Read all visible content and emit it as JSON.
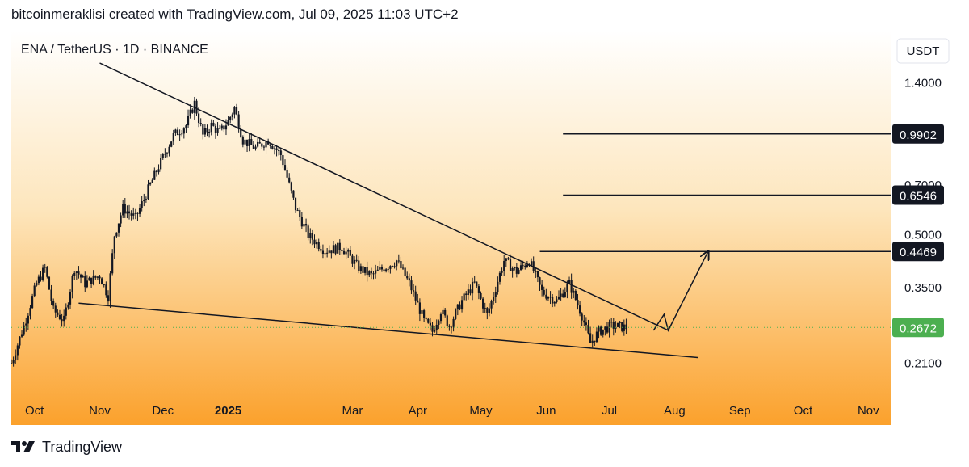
{
  "header": {
    "attribution": "bitcoinmeraklisi created with TradingView.com, Jul 09, 2025 11:03 UTC+2"
  },
  "footer": {
    "brand": "TradingView",
    "logo_icon": "tradingview-logo-icon"
  },
  "colors": {
    "bg_top": "#ffffff",
    "bg_mid": "#fde6bd",
    "bg_bottom": "#fba12c",
    "candle": "#131722",
    "trendline": "#131722",
    "last_price_badge": "#4caf50",
    "level_badge": "#131722"
  },
  "chart_data": {
    "type": "candlestick",
    "symbol_label": "ENA / TetherUS · 1D · BINANCE",
    "currency_label": "USDT",
    "y_scale": "log",
    "ylim": [
      0.17,
      1.6
    ],
    "y_ticks": [
      {
        "value": 1.4,
        "label": "1.4000"
      },
      {
        "value": 0.7,
        "label": "0.7000"
      },
      {
        "value": 0.5,
        "label": "0.5000"
      },
      {
        "value": 0.35,
        "label": "0.3500"
      },
      {
        "value": 0.21,
        "label": "0.2100"
      }
    ],
    "x_ticks": [
      {
        "date": "2024-10-01",
        "label": "Oct",
        "bold": false
      },
      {
        "date": "2024-11-01",
        "label": "Nov",
        "bold": false
      },
      {
        "date": "2024-12-01",
        "label": "Dec",
        "bold": false
      },
      {
        "date": "2025-01-01",
        "label": "2025",
        "bold": true
      },
      {
        "date": "2025-03-01",
        "label": "Mar",
        "bold": false
      },
      {
        "date": "2025-04-01",
        "label": "Apr",
        "bold": false
      },
      {
        "date": "2025-05-01",
        "label": "May",
        "bold": false
      },
      {
        "date": "2025-06-01",
        "label": "Jun",
        "bold": false
      },
      {
        "date": "2025-07-01",
        "label": "Jul",
        "bold": false
      },
      {
        "date": "2025-08-01",
        "label": "Aug",
        "bold": false
      },
      {
        "date": "2025-09-01",
        "label": "Sep",
        "bold": false
      },
      {
        "date": "2025-10-01",
        "label": "Oct",
        "bold": false
      },
      {
        "date": "2025-11-01",
        "label": "Nov",
        "bold": false
      }
    ],
    "xlim": [
      "2024-09-20",
      "2025-11-12"
    ],
    "price_path": [
      [
        "2024-09-20",
        0.21
      ],
      [
        "2024-09-26",
        0.27
      ],
      [
        "2024-10-02",
        0.36
      ],
      [
        "2024-10-06",
        0.4
      ],
      [
        "2024-10-10",
        0.3
      ],
      [
        "2024-10-15",
        0.28
      ],
      [
        "2024-10-20",
        0.4
      ],
      [
        "2024-10-25",
        0.36
      ],
      [
        "2024-11-01",
        0.38
      ],
      [
        "2024-11-05",
        0.33
      ],
      [
        "2024-11-08",
        0.5
      ],
      [
        "2024-11-12",
        0.6
      ],
      [
        "2024-11-18",
        0.56
      ],
      [
        "2024-11-24",
        0.68
      ],
      [
        "2024-11-30",
        0.82
      ],
      [
        "2024-12-06",
        0.98
      ],
      [
        "2024-12-12",
        1.05
      ],
      [
        "2024-12-16",
        1.22
      ],
      [
        "2024-12-20",
        0.98
      ],
      [
        "2024-12-24",
        1.05
      ],
      [
        "2024-12-28",
        1.0
      ],
      [
        "2025-01-01",
        1.08
      ],
      [
        "2025-01-04",
        1.18
      ],
      [
        "2025-01-08",
        0.95
      ],
      [
        "2025-01-14",
        0.9
      ],
      [
        "2025-01-20",
        0.95
      ],
      [
        "2025-01-26",
        0.86
      ],
      [
        "2025-02-02",
        0.6
      ],
      [
        "2025-02-08",
        0.5
      ],
      [
        "2025-02-16",
        0.45
      ],
      [
        "2025-02-24",
        0.46
      ],
      [
        "2025-03-04",
        0.4
      ],
      [
        "2025-03-10",
        0.38
      ],
      [
        "2025-03-16",
        0.4
      ],
      [
        "2025-03-22",
        0.42
      ],
      [
        "2025-03-28",
        0.36
      ],
      [
        "2025-04-04",
        0.28
      ],
      [
        "2025-04-08",
        0.26
      ],
      [
        "2025-04-12",
        0.3
      ],
      [
        "2025-04-16",
        0.27
      ],
      [
        "2025-04-22",
        0.32
      ],
      [
        "2025-04-28",
        0.36
      ],
      [
        "2025-05-04",
        0.29
      ],
      [
        "2025-05-08",
        0.35
      ],
      [
        "2025-05-12",
        0.42
      ],
      [
        "2025-05-18",
        0.39
      ],
      [
        "2025-05-24",
        0.42
      ],
      [
        "2025-05-30",
        0.34
      ],
      [
        "2025-06-06",
        0.32
      ],
      [
        "2025-06-12",
        0.36
      ],
      [
        "2025-06-18",
        0.29
      ],
      [
        "2025-06-22",
        0.24
      ],
      [
        "2025-06-26",
        0.26
      ],
      [
        "2025-07-02",
        0.27
      ],
      [
        "2025-07-09",
        0.2672
      ]
    ],
    "last_price": {
      "value": 0.2672,
      "label": "0.2672"
    },
    "levels": [
      {
        "value": 0.9902,
        "label": "0.9902",
        "from": "2025-06-09"
      },
      {
        "value": 0.6546,
        "label": "0.6546",
        "from": "2025-06-09"
      },
      {
        "value": 0.4469,
        "label": "0.4469",
        "from": "2025-05-29"
      }
    ],
    "trendlines": [
      {
        "name": "resistance",
        "points": [
          [
            "2024-11-01",
            1.6
          ],
          [
            "2025-07-29",
            0.262
          ]
        ]
      },
      {
        "name": "support",
        "points": [
          [
            "2024-10-22",
            0.315
          ],
          [
            "2025-08-12",
            0.218
          ]
        ]
      },
      {
        "name": "projection",
        "points": [
          [
            "2025-07-22",
            0.262
          ],
          [
            "2025-07-27",
            0.292
          ],
          [
            "2025-07-29",
            0.262
          ],
          [
            "2025-08-17",
            0.448
          ]
        ]
      }
    ]
  }
}
